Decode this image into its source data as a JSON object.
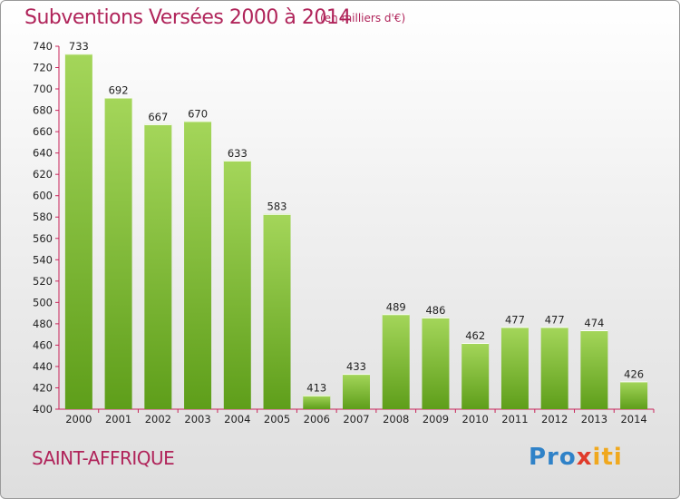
{
  "header": {
    "title": "Subventions Versées 2000 à 2014",
    "subtitle": "(en milliers d'€)"
  },
  "footer": {
    "city": "SAINT-AFFRIQUE",
    "brand": {
      "p1": "Pro",
      "x": "x",
      "p2": "iti"
    }
  },
  "colors": {
    "bar_top": "#a4d65a",
    "bar_bottom": "#5e9e1a",
    "title": "#b0245a",
    "axis": "#c8245a"
  },
  "chart_data": {
    "type": "bar",
    "title": "Subventions Versées 2000 à 2014",
    "subtitle": "(en milliers d'€)",
    "categories": [
      "2000",
      "2001",
      "2002",
      "2003",
      "2004",
      "2005",
      "2006",
      "2007",
      "2008",
      "2009",
      "2010",
      "2011",
      "2012",
      "2013",
      "2014"
    ],
    "values": [
      733,
      692,
      667,
      670,
      633,
      583,
      413,
      433,
      489,
      486,
      462,
      477,
      477,
      474,
      426
    ],
    "ylim": [
      400,
      740
    ],
    "yticks": [
      400,
      420,
      440,
      460,
      480,
      500,
      520,
      540,
      560,
      580,
      600,
      620,
      640,
      660,
      680,
      700,
      720,
      740
    ],
    "grid": false,
    "legend": "none"
  }
}
